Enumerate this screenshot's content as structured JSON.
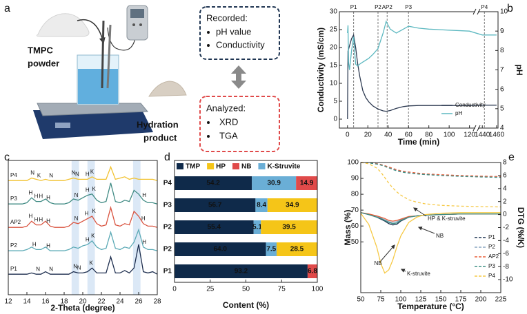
{
  "diagram": {
    "panel_label": "a",
    "powder_label": [
      "TMPC",
      "powder"
    ],
    "product_label": [
      "Hydration",
      "product"
    ],
    "recorded": {
      "title": "Recorded:",
      "items": [
        "pH value",
        "Conductivity"
      ]
    },
    "analyzed": {
      "title": "Analyzed:",
      "items": [
        "XRD",
        "TGA"
      ]
    }
  },
  "chart_data": [
    {
      "type": "line",
      "panel_label": "b",
      "xlabel": "Time (min)",
      "ylabel": "Conductivity (mS/cm)",
      "y2label": "pH",
      "x": [
        0,
        0.5,
        1,
        2,
        4,
        6,
        8,
        10,
        12,
        15,
        18,
        21,
        25,
        30,
        35,
        38,
        42,
        48,
        55,
        60,
        70,
        80,
        100,
        120,
        1440,
        1460
      ],
      "xlim": [
        -8,
        1462
      ],
      "xbreak": [
        125,
        1435
      ],
      "xticks": [
        0,
        20,
        40,
        60,
        80,
        100,
        120,
        1440,
        1460
      ],
      "ylim": [
        -2.5,
        30
      ],
      "yticks": [
        0,
        5,
        10,
        15,
        20,
        25,
        30
      ],
      "y2lim": [
        4,
        10
      ],
      "y2ticks": [
        4,
        5,
        6,
        7,
        8,
        9,
        10
      ],
      "series": [
        {
          "name": "Conductivity",
          "color": "#2e3b52",
          "values": [
            0,
            19,
            19.5,
            20.5,
            22.5,
            23.5,
            20,
            15.5,
            12,
            8,
            6,
            4.8,
            3.7,
            2.8,
            2.3,
            2.2,
            2.4,
            3,
            3.5,
            3.7,
            3.8,
            3.8,
            3.8,
            3.8,
            3.9,
            3.9
          ]
        },
        {
          "name": "pH",
          "color": "#5cb8c0",
          "axis": "y2",
          "values": [
            8.9,
            9.3,
            7.4,
            7.0,
            8.0,
            8.7,
            7.3,
            7.2,
            7.3,
            7.4,
            7.5,
            7.6,
            7.8,
            8.1,
            8.9,
            9.5,
            9.1,
            8.9,
            9.1,
            9.25,
            9.15,
            9.1,
            9.05,
            9.0,
            8.8,
            8.8
          ]
        }
      ],
      "markers": [
        {
          "label": "P1",
          "x": 6
        },
        {
          "label": "P2",
          "x": 30
        },
        {
          "label": "AP2",
          "x": 39
        },
        {
          "label": "P3",
          "x": 60
        },
        {
          "label": "P4",
          "x": 1443
        }
      ],
      "legend": "lower right"
    },
    {
      "type": "line",
      "panel_label": "c",
      "xlabel": "2-Theta (degree)",
      "x": [
        12,
        12.5,
        13,
        13.5,
        14,
        14.5,
        15,
        15.5,
        16,
        16.5,
        17,
        17.5,
        18,
        18.5,
        19,
        19.5,
        20,
        20.5,
        21,
        21.5,
        22,
        22.5,
        23,
        23.5,
        24,
        24.5,
        25,
        25.5,
        26,
        26.5,
        27,
        27.5,
        28
      ],
      "xlim": [
        12,
        28
      ],
      "xticks": [
        12,
        14,
        16,
        18,
        20,
        22,
        24,
        26,
        28
      ],
      "bands": [
        [
          18.8,
          19.6
        ],
        [
          20.5,
          21.3
        ],
        [
          25.4,
          26.2
        ]
      ],
      "series": [
        {
          "name": "P4",
          "color": "#f2c230",
          "values": [
            1,
            1,
            1,
            1,
            1,
            3,
            2,
            1,
            2,
            1,
            1,
            1,
            1,
            2,
            3,
            2,
            2,
            2,
            4,
            2,
            2,
            2,
            12,
            2,
            3,
            4,
            2,
            3,
            2,
            2,
            2,
            2,
            1
          ],
          "labels": [
            {
              "text": "N",
              "x": 14.6
            },
            {
              "text": "K",
              "x": 15.3
            },
            {
              "text": "N",
              "x": 16.6
            },
            {
              "text": "N",
              "x": 19.0
            },
            {
              "text": "N",
              "x": 19.4
            },
            {
              "text": "H",
              "x": 20.5
            },
            {
              "text": "K",
              "x": 21.0
            }
          ]
        },
        {
          "name": "P3",
          "color": "#3f8a83",
          "values": [
            1,
            1,
            1,
            1,
            2,
            6,
            3,
            3,
            5,
            2,
            1,
            1,
            1,
            2,
            5,
            4,
            6,
            8,
            9,
            4,
            2,
            3,
            18,
            3,
            2,
            4,
            3,
            12,
            9,
            4,
            2,
            2,
            1
          ],
          "labels": [
            {
              "text": "H",
              "x": 14.4
            },
            {
              "text": "H",
              "x": 15.0
            },
            {
              "text": "H",
              "x": 15.5
            },
            {
              "text": "H",
              "x": 16.3
            },
            {
              "text": "N",
              "x": 19.3
            },
            {
              "text": "H",
              "x": 20.5
            },
            {
              "text": "K",
              "x": 21.2
            },
            {
              "text": "H",
              "x": 26.6
            }
          ]
        },
        {
          "name": "AP2",
          "color": "#d9533f",
          "values": [
            1,
            1,
            1,
            1,
            2,
            6,
            3,
            3,
            6,
            2,
            1,
            1,
            1,
            2,
            5,
            4,
            6,
            8,
            10,
            4,
            2,
            3,
            17,
            3,
            2,
            4,
            3,
            14,
            10,
            4,
            2,
            2,
            1
          ],
          "labels": [
            {
              "text": "H",
              "x": 14.4
            },
            {
              "text": "H",
              "x": 15.0
            },
            {
              "text": "H",
              "x": 15.5
            },
            {
              "text": "H",
              "x": 16.3
            },
            {
              "text": "N",
              "x": 19.3
            },
            {
              "text": "H",
              "x": 20.4
            },
            {
              "text": "K",
              "x": 21.2
            },
            {
              "text": "H",
              "x": 26.5
            }
          ]
        },
        {
          "name": "P2",
          "color": "#5aa9b5",
          "values": [
            1,
            1,
            1,
            1,
            2,
            4,
            2,
            2,
            4,
            1,
            1,
            1,
            1,
            2,
            4,
            3,
            5,
            6,
            9,
            4,
            2,
            3,
            16,
            3,
            2,
            4,
            3,
            8,
            18,
            4,
            2,
            2,
            1
          ],
          "labels": [
            {
              "text": "H",
              "x": 14.8
            },
            {
              "text": "H",
              "x": 16.3
            },
            {
              "text": "H",
              "x": 20.5
            },
            {
              "text": "K",
              "x": 21.1
            },
            {
              "text": "H",
              "x": 26.6
            }
          ]
        },
        {
          "name": "P1",
          "color": "#1a2b4c",
          "values": [
            1,
            1,
            1,
            1,
            1,
            2,
            1,
            1,
            3,
            1,
            1,
            1,
            1,
            1,
            3,
            2,
            2,
            3,
            6,
            2,
            2,
            2,
            15,
            2,
            2,
            4,
            2,
            6,
            25,
            3,
            2,
            3,
            1
          ],
          "labels": [
            {
              "text": "N",
              "x": 15.2
            },
            {
              "text": "N",
              "x": 16.6
            },
            {
              "text": "N",
              "x": 19.2
            },
            {
              "text": "N",
              "x": 19.6
            },
            {
              "text": "K",
              "x": 20.9
            }
          ]
        }
      ]
    },
    {
      "type": "bar",
      "orientation": "horizontal",
      "stacked": true,
      "panel_label": "d",
      "xlabel": "Content (%)",
      "categories": [
        "P4",
        "P3",
        "P2",
        "P2",
        "P1"
      ],
      "xlim": [
        0,
        100
      ],
      "xticks": [
        0,
        25,
        50,
        75,
        100
      ],
      "stack_order": [
        0,
        3,
        1,
        2
      ],
      "series": [
        {
          "name": "TMP",
          "color": "#0f2a4a",
          "values": [
            54.2,
            56.7,
            55.4,
            64.0,
            93.2
          ],
          "value_labels": [
            "54.2",
            "56.7",
            "55.4",
            "64.0",
            "93.2"
          ]
        },
        {
          "name": "HP",
          "color": "#f5c518",
          "values": [
            null,
            34.9,
            39.5,
            28.5,
            null
          ]
        },
        {
          "name": "NB",
          "color": "#e04a4a",
          "values": [
            14.9,
            null,
            null,
            null,
            6.8
          ]
        },
        {
          "name": "K-Struvite",
          "color": "#6aaed6",
          "values": [
            30.9,
            8.4,
            5.1,
            7.5,
            null
          ]
        }
      ]
    },
    {
      "type": "line",
      "panel_label": "e",
      "xlabel": "Temperature (°C)",
      "ylabel": "Mass (%)",
      "y2label": "DTG (%/K)",
      "x": [
        50,
        60,
        70,
        75,
        80,
        85,
        90,
        95,
        100,
        110,
        120,
        130,
        150,
        175,
        200,
        225
      ],
      "xlim": [
        50,
        225
      ],
      "xticks": [
        50,
        75,
        100,
        125,
        150,
        175,
        200,
        225
      ],
      "ylim": [
        18,
        100
      ],
      "yticks": [
        50,
        60,
        70,
        80,
        90,
        100
      ],
      "y2lim": [
        -12,
        8
      ],
      "y2ticks": [
        -10,
        -8,
        -6,
        -4,
        -2,
        0,
        2,
        4,
        6,
        8
      ],
      "y_style": "dashed",
      "series": [
        {
          "name": "P1",
          "color": "#1f3552",
          "values": [
            100,
            99.8,
            99.2,
            98.6,
            97.8,
            96.8,
            95.8,
            95,
            94.3,
            93.5,
            93,
            92.6,
            92,
            91.5,
            91.2,
            91
          ],
          "y2_values": [
            0.3,
            0,
            -0.4,
            -0.7,
            -1,
            -1.4,
            -1.6,
            -1.5,
            -1,
            -0.4,
            -0.2,
            -0.1,
            0,
            0.1,
            0.1,
            0.1
          ]
        },
        {
          "name": "P2",
          "color": "#8aa6c1",
          "values": [
            100,
            99.8,
            99.3,
            98.8,
            98,
            97,
            96,
            95.2,
            94.5,
            93.7,
            93.2,
            92.8,
            92.2,
            91.6,
            91.2,
            90.8
          ],
          "y2_values": [
            0.3,
            0,
            -0.3,
            -0.5,
            -0.8,
            -1.1,
            -1.2,
            -1.1,
            -0.8,
            -0.4,
            -0.2,
            -0.1,
            0,
            0.1,
            0.1,
            0.1
          ]
        },
        {
          "name": "AP2",
          "color": "#e8603c",
          "values": [
            100,
            99.8,
            99.2,
            98.7,
            98,
            97.2,
            96.3,
            95.5,
            94.8,
            94,
            93.4,
            92.9,
            92.3,
            91.8,
            91.4,
            91.1
          ],
          "y2_values": [
            0.3,
            0.1,
            -0.2,
            -0.4,
            -0.6,
            -0.9,
            -1,
            -0.9,
            -0.7,
            -0.3,
            -0.2,
            -0.1,
            0,
            0.1,
            0.1,
            0.1
          ]
        },
        {
          "name": "P3",
          "color": "#3f8f84",
          "values": [
            100,
            99.7,
            99,
            98.4,
            97.6,
            96.6,
            95.6,
            94.8,
            94.1,
            93.3,
            92.8,
            92.4,
            91.8,
            91.3,
            90.9,
            90.6
          ],
          "y2_values": [
            0.3,
            0,
            -0.4,
            -0.6,
            -0.9,
            -1.2,
            -1.4,
            -1.3,
            -0.9,
            -0.4,
            -0.2,
            -0.1,
            0,
            0.1,
            0.1,
            0.1
          ]
        },
        {
          "name": "P4",
          "color": "#f6c945",
          "values": [
            100,
            99.2,
            96.5,
            94,
            90.5,
            87,
            84,
            81.5,
            79.5,
            76.5,
            75,
            74,
            73,
            72.5,
            72.2,
            72
          ],
          "y2_values": [
            0.2,
            -1.5,
            -5,
            -7.5,
            -9,
            -8.5,
            -7,
            -5,
            -3.3,
            -1.2,
            -0.4,
            0,
            0.2,
            0.3,
            0.3,
            0.3
          ]
        }
      ],
      "annotations": [
        "NB",
        "HP & K-struvite",
        "NB",
        "K-struvite"
      ],
      "legend": "lower right"
    }
  ]
}
